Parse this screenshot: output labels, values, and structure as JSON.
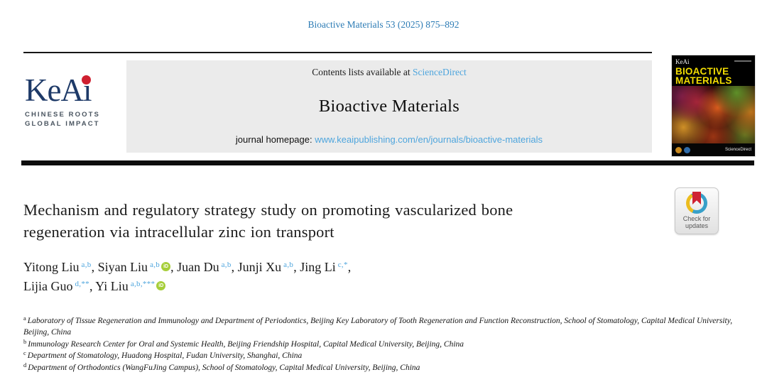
{
  "masthead": {
    "citation": "Bioactive Materials 53 (2025) 875–892",
    "contents_prefix": "Contents lists available at ",
    "sciencedirect_label": "ScienceDirect",
    "journal_title": "Bioactive Materials",
    "homepage_prefix": "journal homepage: ",
    "homepage_url": "www.keaipublishing.com/en/journals/bioactive-materials"
  },
  "keai_logo": {
    "wordmark": "KeAi",
    "tagline_line1": "CHINESE ROOTS",
    "tagline_line2": "GLOBAL IMPACT"
  },
  "cover": {
    "brand": "KeAi",
    "title_line1": "BIOACTIVE",
    "title_line2": "MATERIALS",
    "footer_brand": "ScienceDirect"
  },
  "crossmark": {
    "line1": "Check for",
    "line2": "updates"
  },
  "article": {
    "title_line1": "Mechanism and regulatory strategy study on promoting vascularized bone",
    "title_line2": "regeneration via intracellular zinc ion transport",
    "orcid_label": "iD",
    "author_lines": [
      [
        {
          "name": "Yitong Liu",
          "sup": "a,b",
          "orcid": false,
          "trail": ", "
        },
        {
          "name": "Siyan Liu",
          "sup": "a,b",
          "orcid": true,
          "trail": ", "
        },
        {
          "name": "Juan Du",
          "sup": "a,b",
          "orcid": false,
          "trail": ", "
        },
        {
          "name": "Junji Xu",
          "sup": "a,b",
          "orcid": false,
          "trail": ", "
        },
        {
          "name": "Jing Li",
          "sup": "c,*",
          "orcid": false,
          "trail": ","
        }
      ],
      [
        {
          "name": "Lijia Guo",
          "sup": "d,**",
          "orcid": false,
          "trail": ", "
        },
        {
          "name": "Yi Liu",
          "sup": "a,b,***",
          "orcid": true,
          "trail": ""
        }
      ]
    ],
    "affiliations": [
      {
        "marker": "a",
        "text": "Laboratory of Tissue Regeneration and Immunology and Department of Periodontics, Beijing Key Laboratory of Tooth Regeneration and Function Reconstruction, School of Stomatology, Capital Medical University, Beijing, China"
      },
      {
        "marker": "b",
        "text": "Immunology Research Center for Oral and Systemic Health, Beijing Friendship Hospital, Capital Medical University, Beijing, China"
      },
      {
        "marker": "c",
        "text": "Department of Stomatology, Huadong Hospital, Fudan University, Shanghai, China"
      },
      {
        "marker": "d",
        "text": "Department of Orthodontics (WangFuJing Campus), School of Stomatology, Capital Medical University, Beijing, China"
      }
    ]
  },
  "colors": {
    "citation_blue": "#2d7cb5",
    "link_blue": "#4ea5dd",
    "keai_navy": "#1e3a68",
    "keai_red": "#cf2030",
    "orcid_green": "#a6ce39",
    "cover_yellow": "#f2dd02",
    "crossmark_red": "#cf2233",
    "crossmark_blue": "#37a0c9",
    "crossmark_yellow": "#ecbc1e"
  }
}
